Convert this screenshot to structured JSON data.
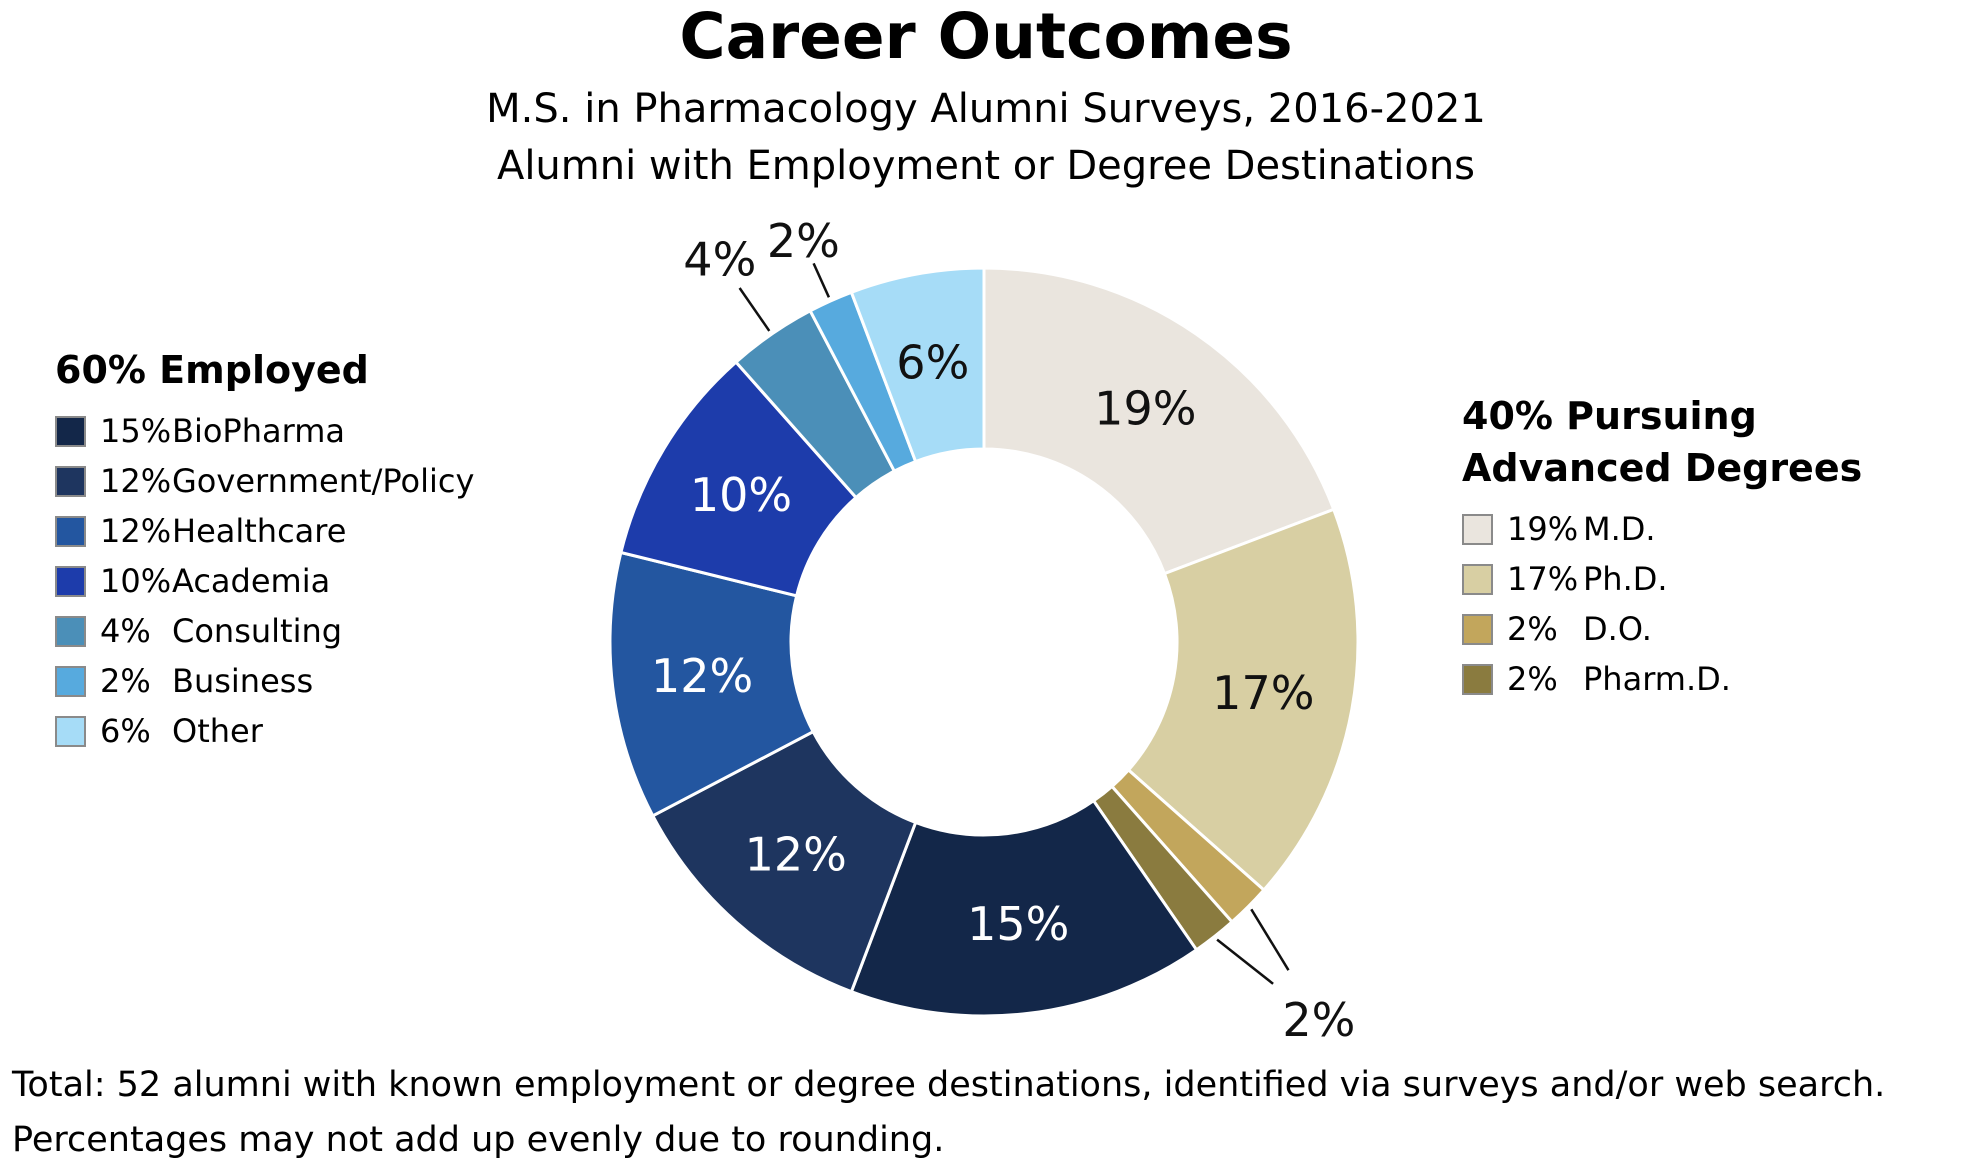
{
  "title": "Career Outcomes",
  "subtitle1": "M.S. in Pharmacology Alumni Surveys, 2016-2021",
  "subtitle2": "Alumni with Employment or Degree Destinations",
  "caption_line1": "Total: 52 alumni with known employment or degree destinations, identified via surveys and/or web search.",
  "caption_line2": "Percentages may not add up evenly due to rounding.",
  "legend_left": {
    "header": "60% Employed",
    "items": [
      {
        "pct": "15%",
        "label": "BioPharma",
        "color": "#132749"
      },
      {
        "pct": "12%",
        "label": "Government/Policy",
        "color": "#1e355f"
      },
      {
        "pct": "12%",
        "label": "Healthcare",
        "color": "#2356a0"
      },
      {
        "pct": "10%",
        "label": "Academia",
        "color": "#1d3cab"
      },
      {
        "pct": "4%",
        "label": "Consulting",
        "color": "#4b8fb8"
      },
      {
        "pct": "2%",
        "label": "Business",
        "color": "#57aade"
      },
      {
        "pct": "6%",
        "label": "Other",
        "color": "#a6dcf7"
      }
    ]
  },
  "legend_right": {
    "header_line1": "40% Pursuing",
    "header_line2": "Advanced Degrees",
    "items": [
      {
        "pct": "19%",
        "label": "M.D.",
        "color": "#eae5de"
      },
      {
        "pct": "17%",
        "label": "Ph.D.",
        "color": "#d8cfa3"
      },
      {
        "pct": "2%",
        "label": "D.O.",
        "color": "#c2a65c"
      },
      {
        "pct": "2%",
        "label": "Pharm.D.",
        "color": "#8a7b3f"
      }
    ]
  },
  "chart_data": {
    "type": "pie",
    "donut": true,
    "title": "Career Outcomes",
    "start_angle": "12 o'clock",
    "direction": "clockwise",
    "total_count": 52,
    "group_summary": [
      {
        "group": "Employed",
        "pct": 60
      },
      {
        "group": "Pursuing Advanced Degrees",
        "pct": 40
      }
    ],
    "slices": [
      {
        "label": "M.D.",
        "pct_label": "19%",
        "value": 19,
        "count": 10,
        "color": "#eae5de",
        "group": "Pursuing Advanced Degrees",
        "label_inside": true,
        "text_color": "#111111"
      },
      {
        "label": "Ph.D.",
        "pct_label": "17%",
        "value": 17,
        "count": 9,
        "color": "#d8cfa3",
        "group": "Pursuing Advanced Degrees",
        "label_inside": true,
        "text_color": "#111111"
      },
      {
        "label": "D.O.",
        "pct_label": "2%",
        "value": 2,
        "count": 1,
        "color": "#c2a65c",
        "group": "Pursuing Advanced Degrees",
        "label_inside": false,
        "callout_group": "do-pharmd",
        "callout_label_r": 505
      },
      {
        "label": "Pharm.D.",
        "pct_label": "2%",
        "value": 2,
        "count": 1,
        "color": "#8a7b3f",
        "group": "Pursuing Advanced Degrees",
        "label_inside": false,
        "callout_group": "do-pharmd",
        "callout_label_r": 505
      },
      {
        "label": "BioPharma",
        "pct_label": "15%",
        "value": 15,
        "count": 8,
        "color": "#132749",
        "group": "Employed",
        "label_inside": true,
        "text_color": "#ffffff"
      },
      {
        "label": "Government/Policy",
        "pct_label": "12%",
        "value": 12,
        "count": 6,
        "color": "#1e355f",
        "group": "Employed",
        "label_inside": true,
        "text_color": "#ffffff"
      },
      {
        "label": "Healthcare",
        "pct_label": "12%",
        "value": 12,
        "count": 6,
        "color": "#2356a0",
        "group": "Employed",
        "label_inside": true,
        "text_color": "#ffffff"
      },
      {
        "label": "Academia",
        "pct_label": "10%",
        "value": 10,
        "count": 5,
        "color": "#1d3cab",
        "group": "Employed",
        "label_inside": true,
        "text_color": "#ffffff"
      },
      {
        "label": "Consulting",
        "pct_label": "4%",
        "value": 4,
        "count": 2,
        "color": "#4b8fb8",
        "group": "Employed",
        "label_inside": false,
        "callout_group": "consulting",
        "callout_label_r": 465
      },
      {
        "label": "Business",
        "pct_label": "2%",
        "value": 2,
        "count": 1,
        "color": "#57aade",
        "group": "Employed",
        "label_inside": false,
        "callout_group": "business",
        "callout_label_r": 440
      },
      {
        "label": "Other",
        "pct_label": "6%",
        "value": 6,
        "count": 3,
        "color": "#a6dcf7",
        "group": "Employed",
        "label_inside": true,
        "text_color": "#111111"
      }
    ]
  }
}
